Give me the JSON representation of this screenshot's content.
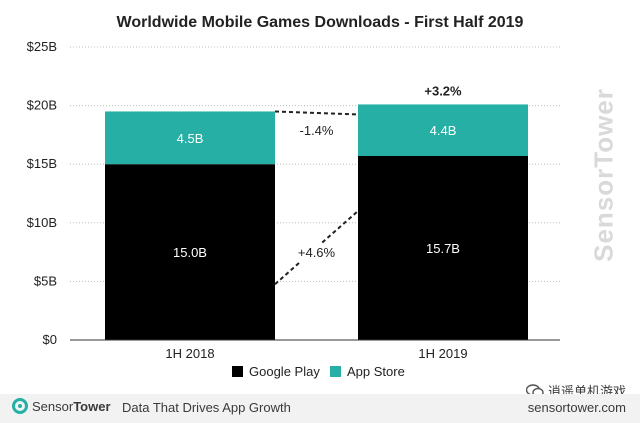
{
  "chart_data": {
    "type": "bar",
    "stacked": true,
    "title": "Worldwide Mobile Games Downloads - First Half 2019",
    "categories": [
      "1H 2018",
      "1H 2019"
    ],
    "series": [
      {
        "name": "Google Play",
        "color": "#000000",
        "values": [
          15.0,
          15.7
        ],
        "labels": [
          "15.0B",
          "15.7B"
        ]
      },
      {
        "name": "App Store",
        "color": "#26b0a5",
        "values": [
          4.5,
          4.4
        ],
        "labels": [
          "4.5B",
          "4.4B"
        ]
      }
    ],
    "ylim": [
      0,
      25
    ],
    "y_ticks": [
      0,
      5,
      10,
      15,
      20,
      25
    ],
    "y_tick_labels": [
      "$0",
      "$5B",
      "$10B",
      "$15B",
      "$20B",
      "$25B"
    ],
    "annotations": {
      "app_store_change": "-1.4%",
      "google_play_change": "+4.6%",
      "total_change": "+3.2%"
    },
    "grid": true,
    "legend_position": "bottom"
  },
  "branding": {
    "watermark": "SensorTower",
    "footer_logo_light": "Sensor",
    "footer_logo_bold": "Tower",
    "footer_tagline": "Data That Drives App Growth",
    "footer_url": "sensortower.com",
    "wechat_label": "逍遥单机游戏"
  },
  "colors": {
    "google_play": "#000000",
    "app_store": "#26b0a5",
    "footer_band": "#f2f2f2"
  }
}
